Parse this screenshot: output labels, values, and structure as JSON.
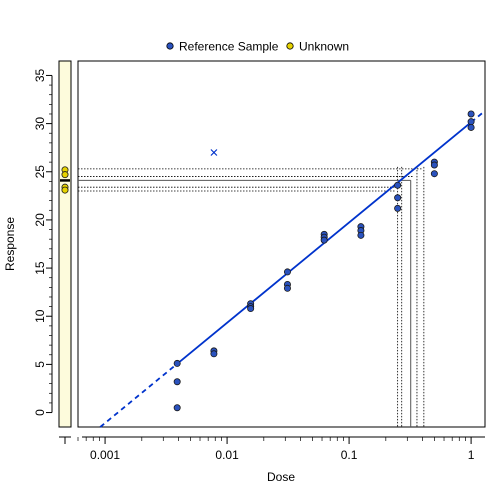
{
  "chart_data": {
    "type": "scatter",
    "xlabel": "Dose",
    "ylabel": "Response",
    "x_scale": "log",
    "xlim": [
      0.0006,
      1.3
    ],
    "ylim": [
      -1.5,
      36.5
    ],
    "x_ticks": [
      {
        "value": 0.001,
        "label": "0.001"
      },
      {
        "value": 0.01,
        "label": "0.01"
      },
      {
        "value": 0.1,
        "label": "0.1"
      },
      {
        "value": 1,
        "label": "1"
      }
    ],
    "y_ticks": [
      {
        "value": 0,
        "label": "0"
      },
      {
        "value": 5,
        "label": "5"
      },
      {
        "value": 10,
        "label": "10"
      },
      {
        "value": 15,
        "label": "15"
      },
      {
        "value": 20,
        "label": "20"
      },
      {
        "value": 25,
        "label": "25"
      },
      {
        "value": 30,
        "label": "30"
      },
      {
        "value": 35,
        "label": "35"
      }
    ],
    "legend": {
      "position": "top",
      "entries": [
        {
          "label": "Reference Sample",
          "color": "#2a52be"
        },
        {
          "label": "Unknown",
          "color": "#e6d200"
        }
      ]
    },
    "reference_points": [
      {
        "x": 0.0039,
        "y": 5.1
      },
      {
        "x": 0.0039,
        "y": 3.2
      },
      {
        "x": 0.0039,
        "y": 0.5
      },
      {
        "x": 0.0078,
        "y": 6.4
      },
      {
        "x": 0.0078,
        "y": 6.1
      },
      {
        "x": 0.0156,
        "y": 11.3
      },
      {
        "x": 0.0156,
        "y": 11.0
      },
      {
        "x": 0.0156,
        "y": 10.8
      },
      {
        "x": 0.03125,
        "y": 14.6
      },
      {
        "x": 0.03125,
        "y": 13.3
      },
      {
        "x": 0.03125,
        "y": 12.9
      },
      {
        "x": 0.0625,
        "y": 18.5
      },
      {
        "x": 0.0625,
        "y": 18.2
      },
      {
        "x": 0.0625,
        "y": 17.9
      },
      {
        "x": 0.125,
        "y": 19.3
      },
      {
        "x": 0.125,
        "y": 18.9
      },
      {
        "x": 0.125,
        "y": 18.4
      },
      {
        "x": 0.25,
        "y": 23.6
      },
      {
        "x": 0.25,
        "y": 22.3
      },
      {
        "x": 0.25,
        "y": 21.2
      },
      {
        "x": 0.5,
        "y": 26.0
      },
      {
        "x": 0.5,
        "y": 25.7
      },
      {
        "x": 0.5,
        "y": 24.8
      },
      {
        "x": 1.0,
        "y": 31.0
      },
      {
        "x": 1.0,
        "y": 30.2
      },
      {
        "x": 1.0,
        "y": 29.6
      }
    ],
    "unknown_responses": [
      25.2,
      24.7,
      23.4,
      23.1
    ],
    "outlier": {
      "x": 0.0078,
      "y": 27.0,
      "marker": "x"
    },
    "fit_line": {
      "intercept": 30.14,
      "slope": 10.41,
      "solid_x_range": [
        0.0039,
        1.0
      ],
      "color": "#0033cc"
    },
    "estimate": {
      "response": 24.1,
      "response_lower": 23.3,
      "response_upper": 25.3
    },
    "estimate_lines_dose": {
      "center": 0.32,
      "dotted": [
        0.25,
        0.27,
        0.36,
        0.41
      ]
    },
    "estimate_lines_response": {
      "dotted": [
        23.0,
        23.4,
        24.5,
        25.3
      ]
    },
    "unknown_panel_mean": 24.1
  }
}
